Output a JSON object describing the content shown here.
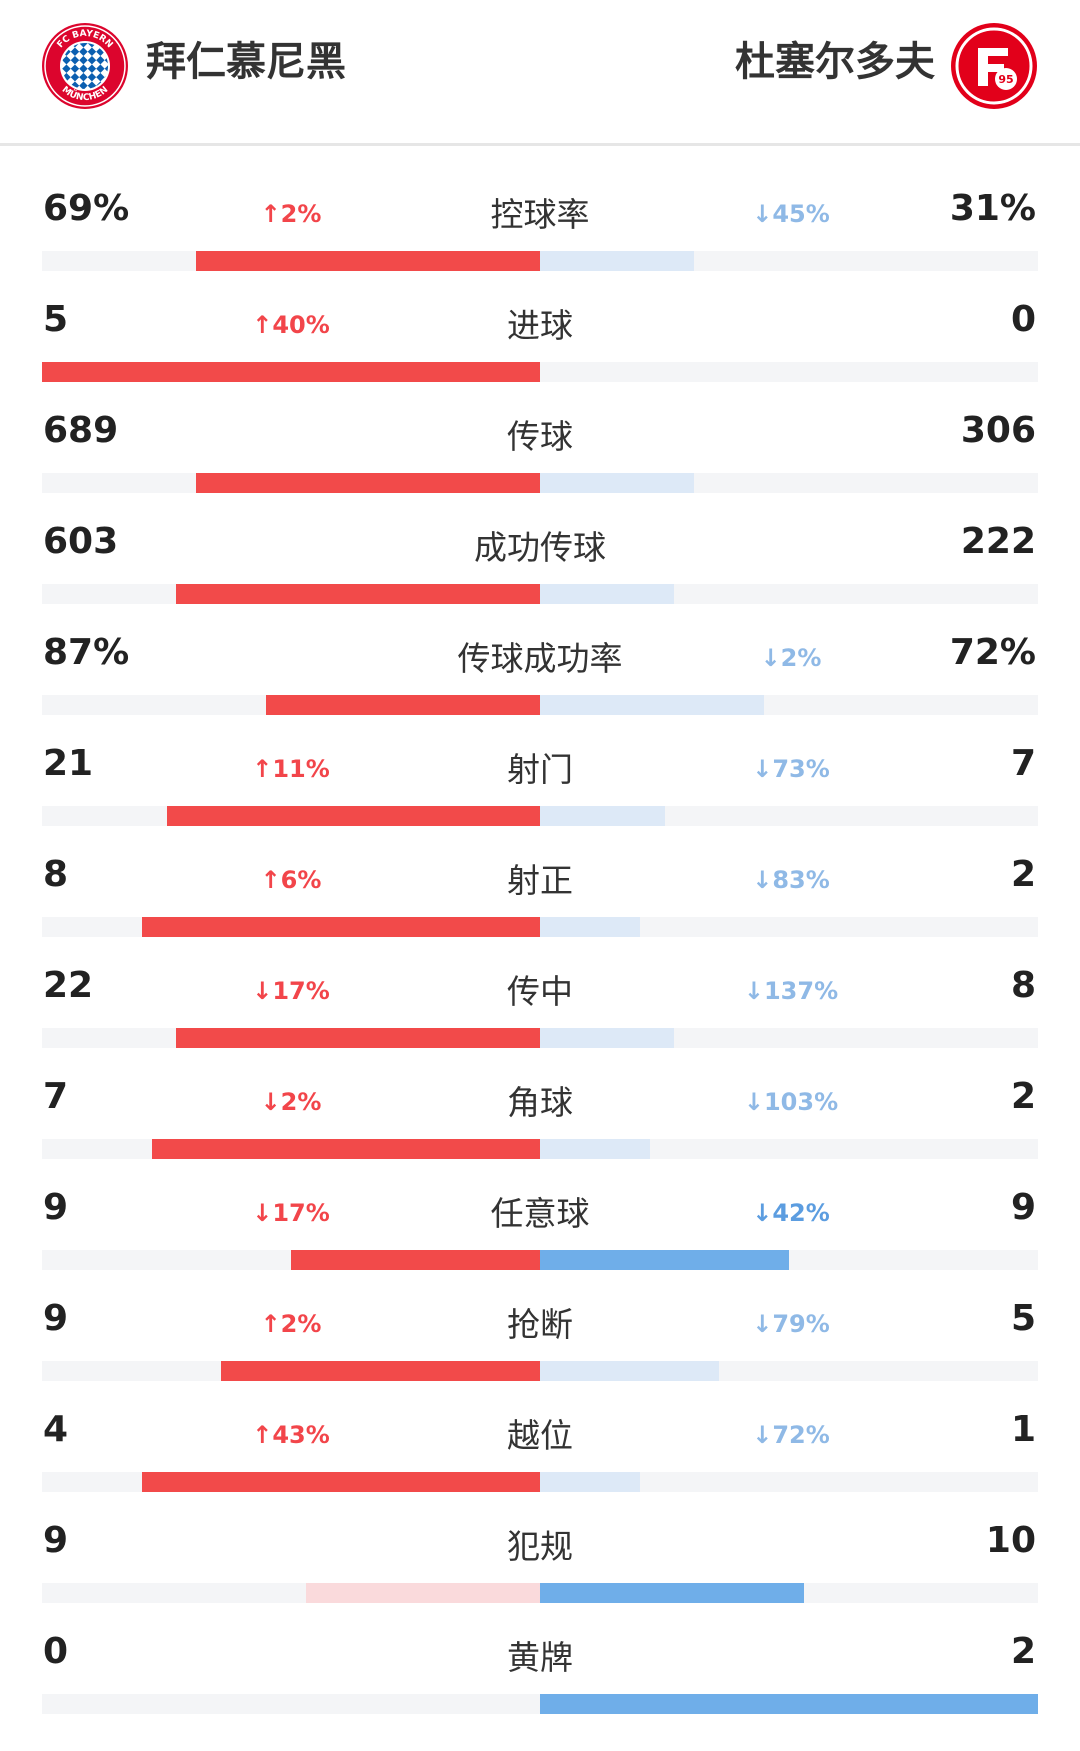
{
  "header": {
    "home_team": "拜仁慕尼黑",
    "away_team": "杜塞尔多夫",
    "home_logo_text": "FC BAYERN MÜNCHEN",
    "away_logo_text": "95"
  },
  "colors": {
    "home": "#f24a4a",
    "home_light": "#fadadc",
    "away_light": "#dde9f7",
    "away_strong": "#6faee9",
    "track": "#f4f5f7"
  },
  "stats": [
    {
      "label": "控球率",
      "home": "69%",
      "away": "31%",
      "home_change": "↑2%",
      "away_change": "↓45%",
      "home_frac": 0.69,
      "away_frac": 0.31,
      "home_style": "normal",
      "away_style": "light"
    },
    {
      "label": "进球",
      "home": "5",
      "away": "0",
      "home_change": "↑40%",
      "away_change": "",
      "home_frac": 1.0,
      "away_frac": 0.0,
      "home_style": "normal",
      "away_style": "light"
    },
    {
      "label": "传球",
      "home": "689",
      "away": "306",
      "home_change": "",
      "away_change": "",
      "home_frac": 0.69,
      "away_frac": 0.31,
      "home_style": "normal",
      "away_style": "light"
    },
    {
      "label": "成功传球",
      "home": "603",
      "away": "222",
      "home_change": "",
      "away_change": "",
      "home_frac": 0.73,
      "away_frac": 0.27,
      "home_style": "normal",
      "away_style": "light"
    },
    {
      "label": "传球成功率",
      "home": "87%",
      "away": "72%",
      "home_change": "",
      "away_change": "↓2%",
      "home_frac": 0.55,
      "away_frac": 0.45,
      "home_style": "normal",
      "away_style": "light"
    },
    {
      "label": "射门",
      "home": "21",
      "away": "7",
      "home_change": "↑11%",
      "away_change": "↓73%",
      "home_frac": 0.75,
      "away_frac": 0.25,
      "home_style": "normal",
      "away_style": "light"
    },
    {
      "label": "射正",
      "home": "8",
      "away": "2",
      "home_change": "↑6%",
      "away_change": "↓83%",
      "home_frac": 0.8,
      "away_frac": 0.2,
      "home_style": "normal",
      "away_style": "light"
    },
    {
      "label": "传中",
      "home": "22",
      "away": "8",
      "home_change": "↓17%",
      "away_change": "↓137%",
      "home_frac": 0.73,
      "away_frac": 0.27,
      "home_style": "normal",
      "away_style": "light"
    },
    {
      "label": "角球",
      "home": "7",
      "away": "2",
      "home_change": "↓2%",
      "away_change": "↓103%",
      "home_frac": 0.78,
      "away_frac": 0.22,
      "home_style": "normal",
      "away_style": "light"
    },
    {
      "label": "任意球",
      "home": "9",
      "away": "9",
      "home_change": "↓17%",
      "away_change": "↓42%",
      "home_frac": 0.5,
      "away_frac": 0.5,
      "home_style": "normal",
      "away_style": "strong"
    },
    {
      "label": "抢断",
      "home": "9",
      "away": "5",
      "home_change": "↑2%",
      "away_change": "↓79%",
      "home_frac": 0.64,
      "away_frac": 0.36,
      "home_style": "normal",
      "away_style": "light"
    },
    {
      "label": "越位",
      "home": "4",
      "away": "1",
      "home_change": "↑43%",
      "away_change": "↓72%",
      "home_frac": 0.8,
      "away_frac": 0.2,
      "home_style": "normal",
      "away_style": "light"
    },
    {
      "label": "犯规",
      "home": "9",
      "away": "10",
      "home_change": "",
      "away_change": "",
      "home_frac": 0.47,
      "away_frac": 0.53,
      "home_style": "light",
      "away_style": "strong"
    },
    {
      "label": "黄牌",
      "home": "0",
      "away": "2",
      "home_change": "",
      "away_change": "",
      "home_frac": 0.0,
      "away_frac": 1.0,
      "home_style": "light",
      "away_style": "strong"
    }
  ]
}
